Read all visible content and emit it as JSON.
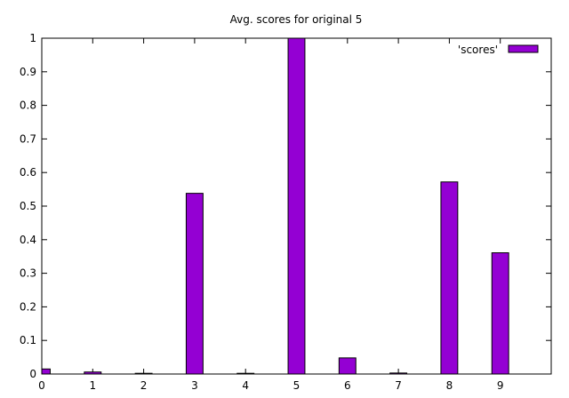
{
  "chart_data": {
    "type": "bar",
    "title": "Avg. scores for original 5",
    "xlabel": "",
    "ylabel": "",
    "categories": [
      "0",
      "1",
      "2",
      "3",
      "4",
      "5",
      "6",
      "7",
      "8",
      "9"
    ],
    "series": [
      {
        "name": "'scores'",
        "values": [
          0.015,
          0.006,
          0.001,
          0.538,
          0.001,
          1.0,
          0.048,
          0.003,
          0.572,
          0.361
        ]
      }
    ],
    "ylim": [
      0,
      1
    ],
    "xlim": [
      0,
      10
    ],
    "yticks": [
      "0",
      "0.1",
      "0.2",
      "0.3",
      "0.4",
      "0.5",
      "0.6",
      "0.7",
      "0.8",
      "0.9",
      "1"
    ],
    "xticks": [
      "0",
      "1",
      "2",
      "3",
      "4",
      "5",
      "6",
      "7",
      "8",
      "9"
    ],
    "grid": false,
    "legend_position": "top-right",
    "colors": {
      "bar_fill": "#9400d3",
      "bar_stroke": "#000000",
      "axis": "#000000"
    }
  }
}
